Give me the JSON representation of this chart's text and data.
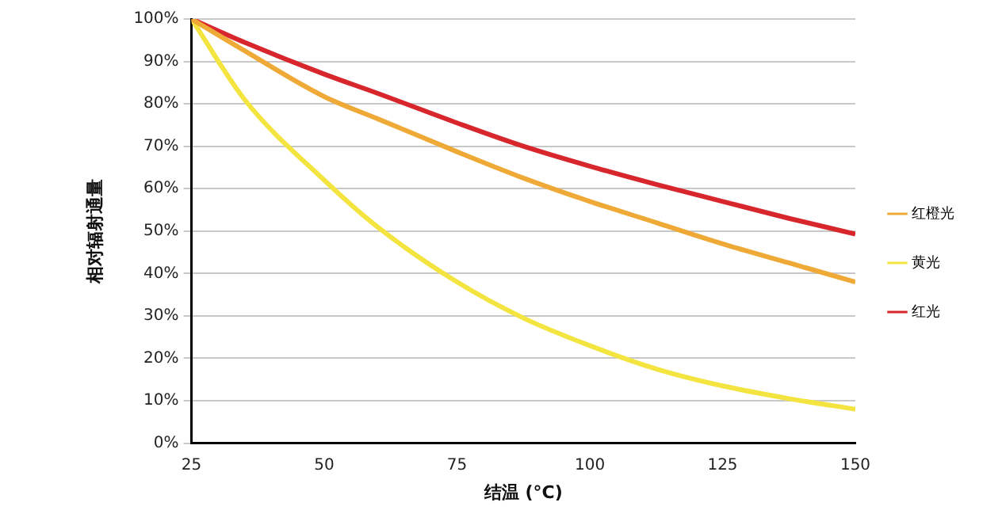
{
  "chart_data": {
    "type": "line",
    "xlabel": "结温 (°C)",
    "ylabel": "相对辐射通量",
    "x": [
      25,
      35,
      50,
      60,
      75,
      87.5,
      100,
      112.5,
      125,
      137.5,
      150
    ],
    "series": [
      {
        "name": "红橙光",
        "color": "#eea936",
        "values": [
          100,
          92.5,
          81.7,
          76.5,
          68.7,
          62.5,
          57,
          52,
          47,
          42.5,
          38
        ]
      },
      {
        "name": "黄光",
        "color": "#f3e440",
        "values": [
          100,
          81,
          62,
          51,
          38,
          29.5,
          23,
          17.5,
          13.5,
          10.5,
          8
        ]
      },
      {
        "name": "红光",
        "color": "#d8262d",
        "values": [
          100,
          94.5,
          87,
          82.5,
          75.5,
          70,
          65.3,
          61,
          57,
          53,
          49.3
        ]
      }
    ],
    "xlim": [
      25,
      150
    ],
    "xticks": [
      25,
      50,
      75,
      100,
      125,
      150
    ],
    "ylim": [
      0,
      100
    ],
    "yticks": [
      {
        "value": 0,
        "label": "0%"
      },
      {
        "value": 10,
        "label": "10%"
      },
      {
        "value": 20,
        "label": "20%"
      },
      {
        "value": 30,
        "label": "30%"
      },
      {
        "value": 40,
        "label": "40%"
      },
      {
        "value": 50,
        "label": "50%"
      },
      {
        "value": 60,
        "label": "60%"
      },
      {
        "value": 70,
        "label": "70%"
      },
      {
        "value": 80,
        "label": "80%"
      },
      {
        "value": 90,
        "label": "90%"
      },
      {
        "value": 100,
        "label": "100%"
      }
    ],
    "grid": "y",
    "legend": "right",
    "marker": "none",
    "line_style": "solid"
  }
}
